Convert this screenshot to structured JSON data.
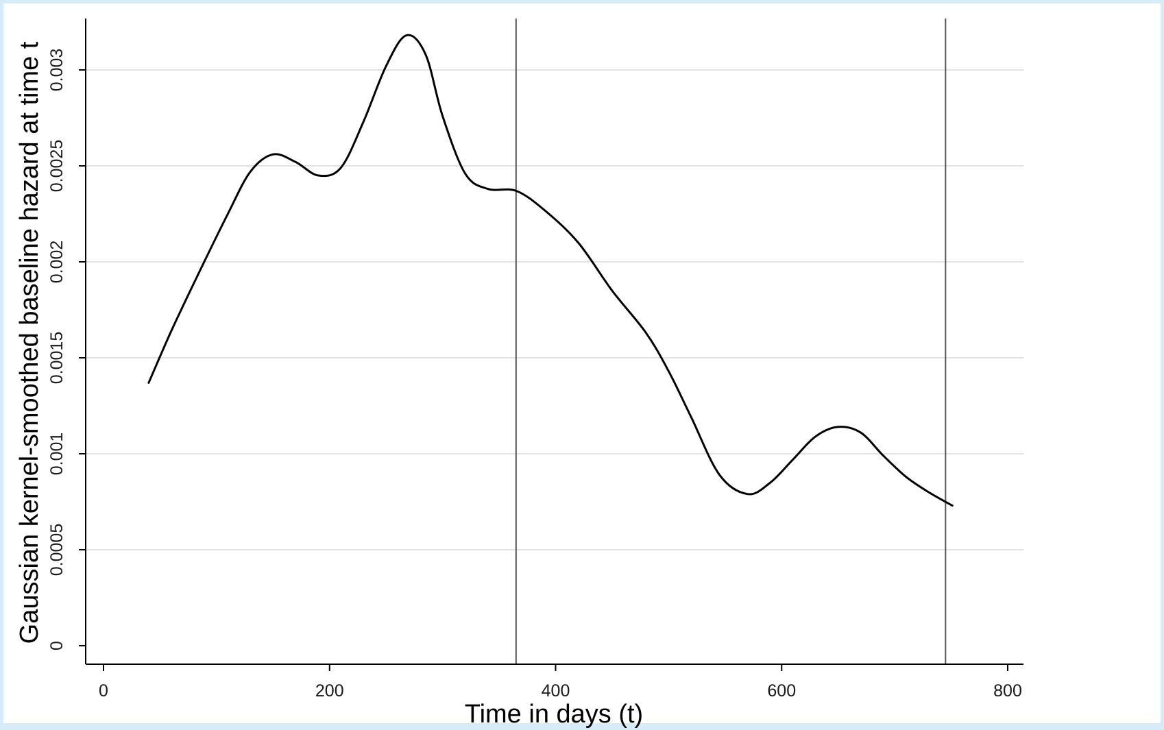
{
  "chart_data": {
    "type": "line",
    "title": "",
    "xlabel": "Time in days (t)",
    "ylabel": "Gaussian kernel-smoothed baseline hazard at time t",
    "xlim": [
      0,
      800
    ],
    "ylim": [
      0,
      0.0032
    ],
    "x_ticks": [
      {
        "value": 0,
        "label": "0"
      },
      {
        "value": 200,
        "label": "200"
      },
      {
        "value": 400,
        "label": "400"
      },
      {
        "value": 600,
        "label": "600"
      },
      {
        "value": 800,
        "label": "800"
      }
    ],
    "y_ticks": [
      {
        "value": 0,
        "label": "0"
      },
      {
        "value": 0.0005,
        "label": "0.0005"
      },
      {
        "value": 0.001,
        "label": "0.001"
      },
      {
        "value": 0.0015,
        "label": "0.0015"
      },
      {
        "value": 0.002,
        "label": "0.002"
      },
      {
        "value": 0.0025,
        "label": "0.0025"
      },
      {
        "value": 0.003,
        "label": "0.003"
      }
    ],
    "grid": {
      "horizontal": true,
      "vertical": false
    },
    "reference_lines_x": [
      365,
      745
    ],
    "series": [
      {
        "x": [
          40,
          60,
          85,
          110,
          130,
          150,
          170,
          190,
          210,
          230,
          250,
          268,
          285,
          300,
          320,
          340,
          365,
          390,
          420,
          450,
          480,
          500,
          520,
          545,
          570,
          590,
          610,
          630,
          650,
          670,
          690,
          710,
          730,
          751
        ],
        "y": [
          0.00137,
          0.00164,
          0.00195,
          0.00225,
          0.00247,
          0.00256,
          0.00252,
          0.00245,
          0.00249,
          0.00273,
          0.00302,
          0.00318,
          0.00308,
          0.00276,
          0.00246,
          0.00238,
          0.00237,
          0.00227,
          0.0021,
          0.00185,
          0.00163,
          0.00143,
          0.00119,
          0.00089,
          0.00079,
          0.00085,
          0.00097,
          0.00109,
          0.00114,
          0.00111,
          0.00099,
          0.00088,
          0.0008,
          0.00073
        ],
        "color": "#000000"
      }
    ],
    "colors": {
      "line": "#000000",
      "axis": "#000000",
      "grid": "#d9d9d9",
      "reference_line": "#555555",
      "frame": "#d6ecf8"
    }
  }
}
